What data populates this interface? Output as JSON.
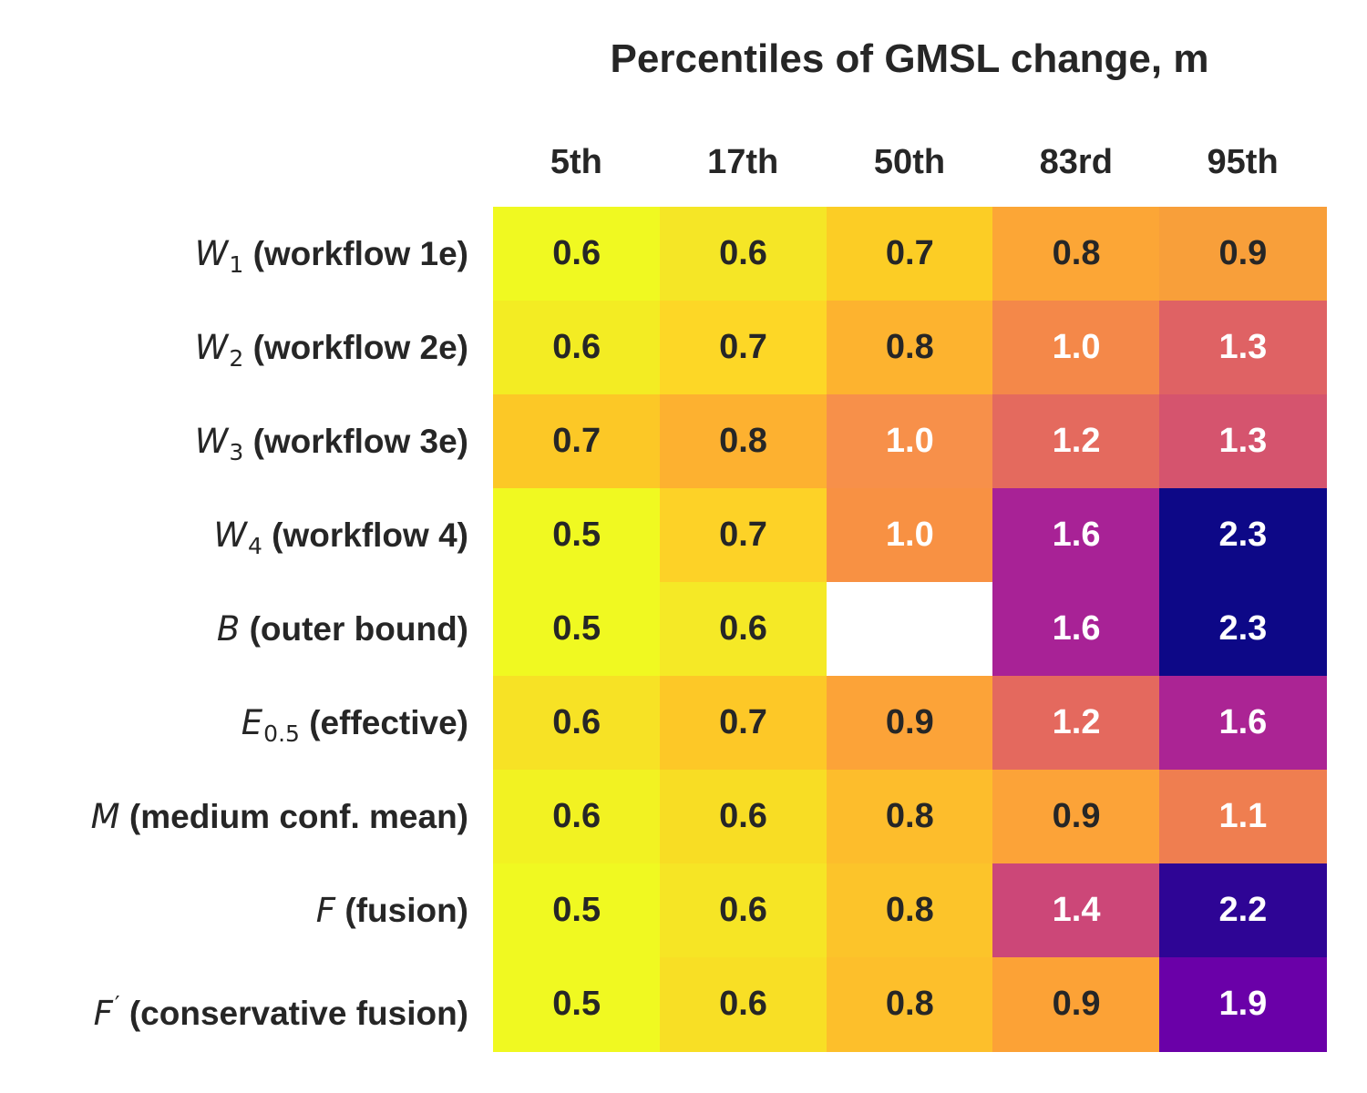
{
  "chart_data": {
    "type": "heatmap",
    "title": "Percentiles of GMSL change, m",
    "columns": [
      "5th",
      "17th",
      "50th",
      "83rd",
      "95th"
    ],
    "rows": [
      {
        "symbol": "W",
        "sub": "1",
        "sup": "",
        "desc": "(workflow 1e)"
      },
      {
        "symbol": "W",
        "sub": "2",
        "sup": "",
        "desc": "(workflow 2e)"
      },
      {
        "symbol": "W",
        "sub": "3",
        "sup": "",
        "desc": "(workflow 3e)"
      },
      {
        "symbol": "W",
        "sub": "4",
        "sup": "",
        "desc": "(workflow 4)"
      },
      {
        "symbol": "B",
        "sub": "",
        "sup": "",
        "desc": "(outer bound)"
      },
      {
        "symbol": "E",
        "sub": "0.5",
        "sup": "",
        "desc": "(effective)"
      },
      {
        "symbol": "M",
        "sub": "",
        "sup": "",
        "desc": "(medium conf. mean)"
      },
      {
        "symbol": "F",
        "sub": "",
        "sup": "",
        "desc": "(fusion)"
      },
      {
        "symbol": "F",
        "sub": "",
        "sup": "′",
        "desc": "(conservative fusion)"
      }
    ],
    "values": [
      [
        "0.6",
        "0.6",
        "0.7",
        "0.8",
        "0.9"
      ],
      [
        "0.6",
        "0.7",
        "0.8",
        "1.0",
        "1.3"
      ],
      [
        "0.7",
        "0.8",
        "1.0",
        "1.2",
        "1.3"
      ],
      [
        "0.5",
        "0.7",
        "1.0",
        "1.6",
        "2.3"
      ],
      [
        "0.5",
        "0.6",
        null,
        "1.6",
        "2.3"
      ],
      [
        "0.6",
        "0.7",
        "0.9",
        "1.2",
        "1.6"
      ],
      [
        "0.6",
        "0.6",
        "0.8",
        "0.9",
        "1.1"
      ],
      [
        "0.5",
        "0.6",
        "0.8",
        "1.4",
        "2.2"
      ],
      [
        "0.5",
        "0.6",
        "0.8",
        "0.9",
        "1.9"
      ]
    ],
    "cell_colors": [
      [
        "#f0f921",
        "#f5e626",
        "#fccd25",
        "#fca636",
        "#f89f3a"
      ],
      [
        "#f3ec23",
        "#fdd726",
        "#fdb32f",
        "#f48849",
        "#df6264"
      ],
      [
        "#fcc826",
        "#fdb130",
        "#f7904a",
        "#e46a5e",
        "#d5546e"
      ],
      [
        "#f0f921",
        "#fdd227",
        "#f89143",
        "#a82296",
        "#0d0887"
      ],
      [
        "#f0f921",
        "#f5e926",
        "#ffffff",
        "#a82296",
        "#0d0887"
      ],
      [
        "#f7e225",
        "#fdc827",
        "#fca338",
        "#e4695e",
        "#ab2494"
      ],
      [
        "#f2f222",
        "#f8dd24",
        "#fdbd2c",
        "#fca338",
        "#ef7e50"
      ],
      [
        "#f0f921",
        "#f6e525",
        "#fcc42a",
        "#cc4778",
        "#2e0595"
      ],
      [
        "#f0f921",
        "#f8df25",
        "#fdbf2b",
        "#fca236",
        "#6a00a8"
      ]
    ],
    "text_colors": [
      [
        "#262626",
        "#262626",
        "#262626",
        "#262626",
        "#262626"
      ],
      [
        "#262626",
        "#262626",
        "#262626",
        "#ffffff",
        "#ffffff"
      ],
      [
        "#262626",
        "#262626",
        "#ffffff",
        "#ffffff",
        "#ffffff"
      ],
      [
        "#262626",
        "#262626",
        "#ffffff",
        "#ffffff",
        "#ffffff"
      ],
      [
        "#262626",
        "#262626",
        "#262626",
        "#ffffff",
        "#ffffff"
      ],
      [
        "#262626",
        "#262626",
        "#262626",
        "#ffffff",
        "#ffffff"
      ],
      [
        "#262626",
        "#262626",
        "#262626",
        "#262626",
        "#ffffff"
      ],
      [
        "#262626",
        "#262626",
        "#262626",
        "#ffffff",
        "#ffffff"
      ],
      [
        "#262626",
        "#262626",
        "#262626",
        "#262626",
        "#ffffff"
      ]
    ],
    "colormap": "plasma_r",
    "missing_cell_color": "#ffffff",
    "grid": false,
    "legend": "none"
  }
}
